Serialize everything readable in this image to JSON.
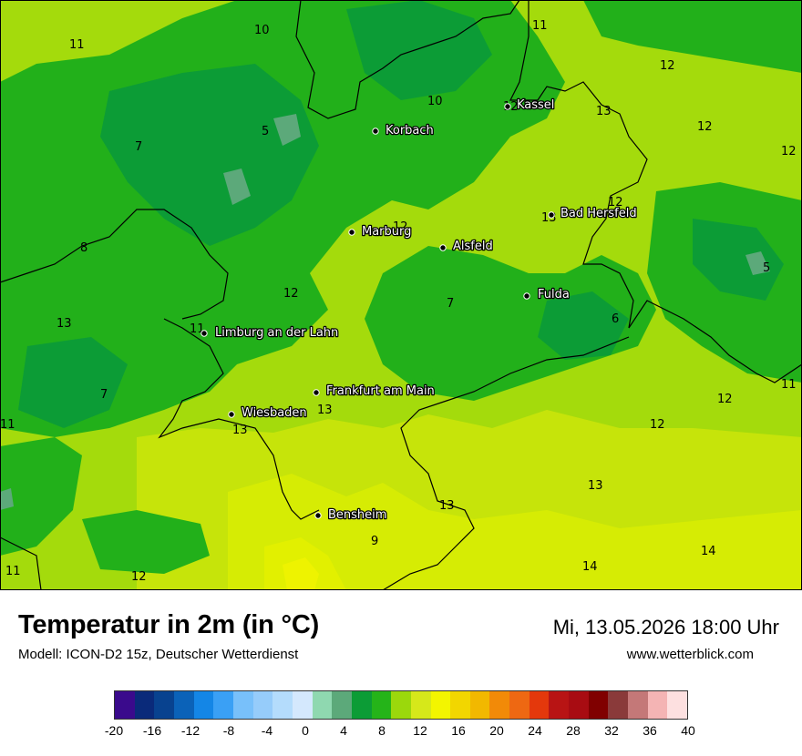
{
  "cities": [
    {
      "name": "Kassel"
    },
    {
      "name": "Korbach"
    },
    {
      "name": "Bad Hersfeld"
    },
    {
      "name": "Marburg"
    },
    {
      "name": "Alsfeld"
    },
    {
      "name": "Fulda"
    },
    {
      "name": "Limburg an der Lahn"
    },
    {
      "name": "Frankfurt am Main"
    },
    {
      "name": "Wiesbaden"
    },
    {
      "name": "Bensheim"
    }
  ],
  "isotherm_labels": [
    "11",
    "10",
    "11",
    "12",
    "10",
    "12",
    "13",
    "12",
    "12",
    "5",
    "7",
    "12",
    "13",
    "8",
    "12",
    "5",
    "7",
    "6",
    "13",
    "11",
    "7",
    "12",
    "11",
    "11",
    "13",
    "12",
    "13",
    "13",
    "9",
    "14",
    "11",
    "12",
    "14",
    "12",
    "13"
  ],
  "footer": {
    "title": "Temperatur in 2m (in °C)",
    "model": "Modell: ICON-D2 15z, Deutscher Wetterdienst",
    "datetime": "Mi, 13.05.2026 18:00 Uhr",
    "website": "www.wetterblick.com"
  },
  "legend": {
    "colors": [
      "#3a0a8c",
      "#0a2a7a",
      "#08428f",
      "#0b62b8",
      "#1486e6",
      "#3aa0f5",
      "#78c0fa",
      "#96ccfa",
      "#b4dcfc",
      "#d4e8fd",
      "#8fd8b0",
      "#5ca97a",
      "#0c9c36",
      "#25b419",
      "#9bd80c",
      "#d6e81a",
      "#f3f500",
      "#f2d600",
      "#f2b800",
      "#f28a08",
      "#ee6812",
      "#e4380c",
      "#b81414",
      "#a80c12",
      "#800000",
      "#8a3a3a",
      "#c47878",
      "#f4b4b4",
      "#fde0e0"
    ],
    "ticks": [
      "-20",
      "-16",
      "-12",
      "-8",
      "-4",
      "0",
      "4",
      "8",
      "12",
      "16",
      "20",
      "24",
      "28",
      "32",
      "36",
      "40"
    ]
  }
}
